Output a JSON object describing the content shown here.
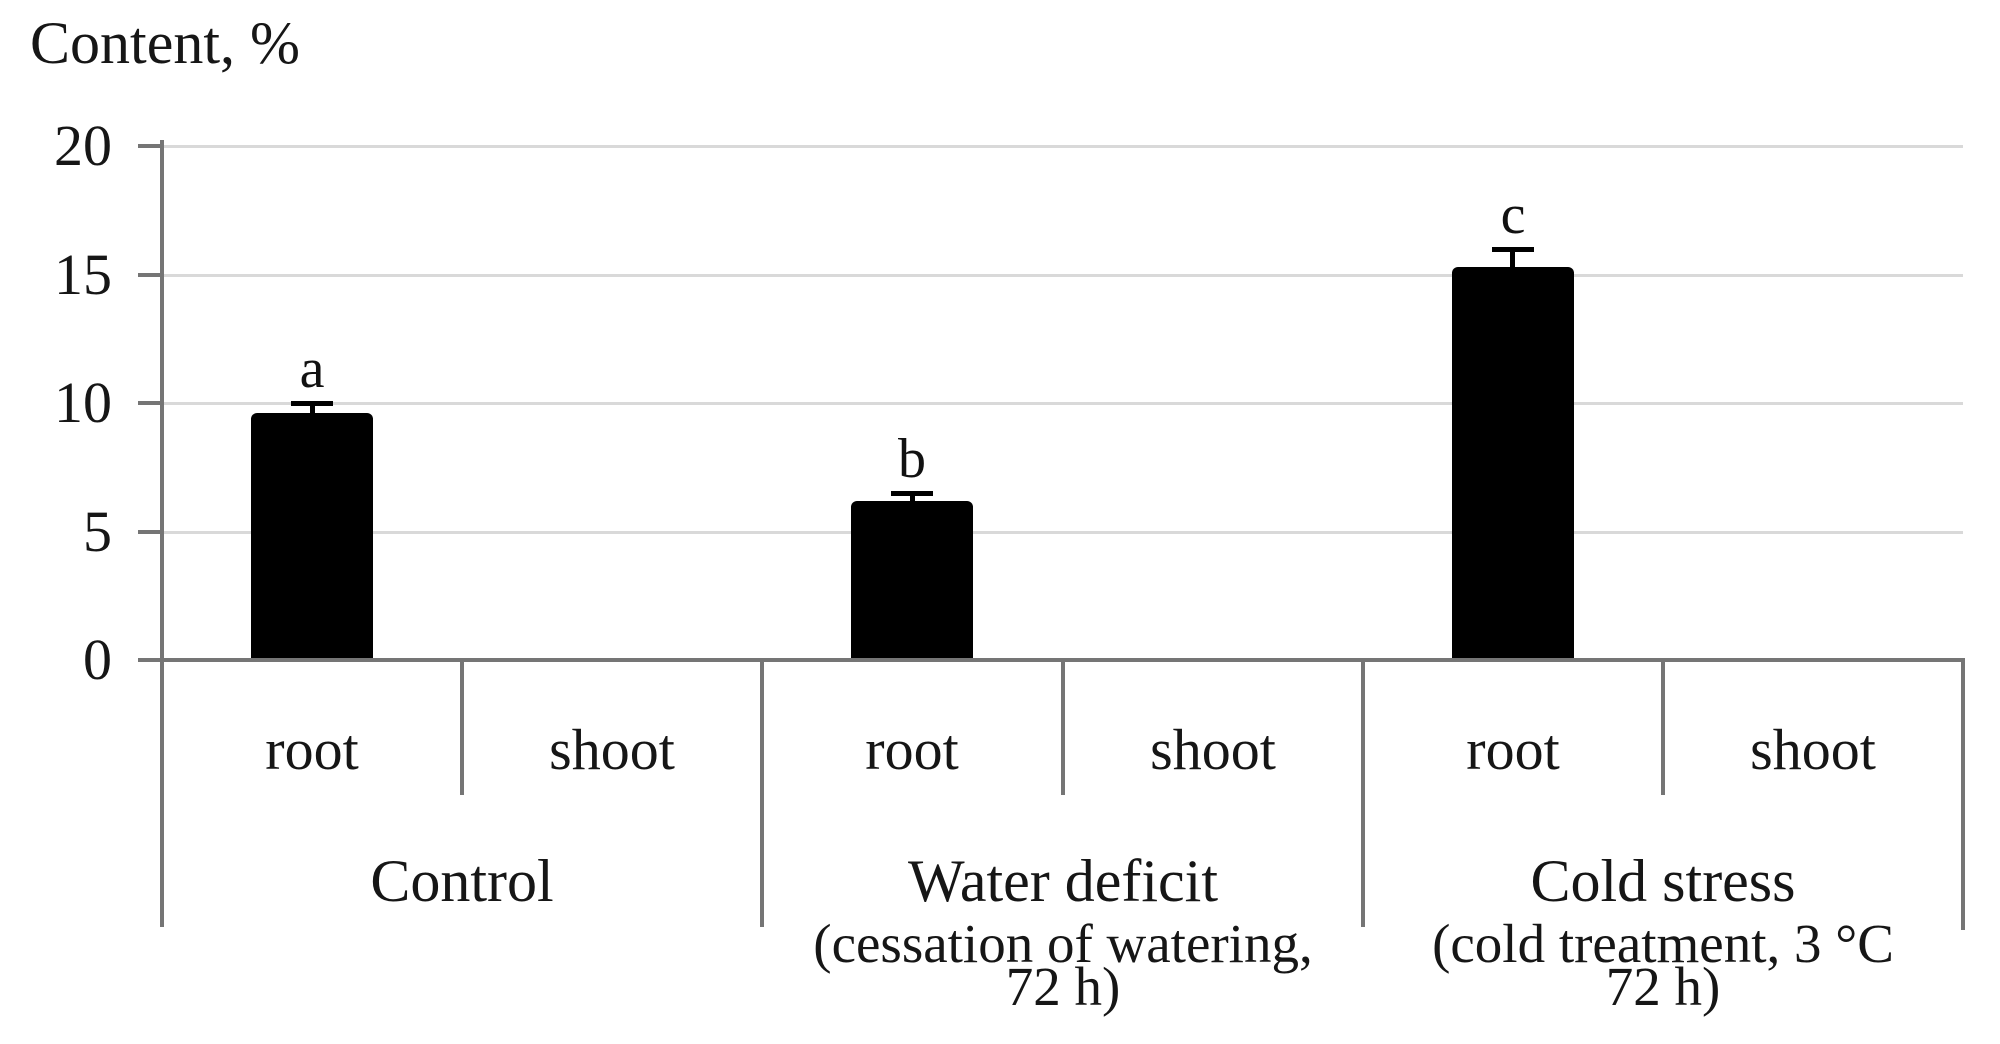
{
  "title": "Content, %",
  "colors": {
    "bar": "#000000",
    "axis": "#757575",
    "gridline": "#d9d9d9",
    "text": "#161616",
    "background": "#ffffff"
  },
  "chart_data": {
    "type": "bar",
    "title": "Content, %",
    "xlabel": "",
    "ylabel": "Content, %",
    "ylim": [
      0,
      20
    ],
    "yticks": [
      0,
      5,
      10,
      15,
      20
    ],
    "grid": true,
    "legend_position": "none",
    "categories": [
      "root",
      "shoot",
      "root",
      "shoot",
      "root",
      "shoot"
    ],
    "values": [
      9.6,
      0,
      6.2,
      0,
      15.3,
      0
    ],
    "errors": [
      0.4,
      0,
      0.3,
      0,
      0.7,
      0
    ],
    "sig_letters": [
      "a",
      "",
      "b",
      "",
      "c",
      ""
    ],
    "groups": [
      {
        "label": "Control",
        "detail_lines": []
      },
      {
        "label": "Water deficit",
        "detail_lines": [
          "(cessation of watering,",
          "72 h)"
        ]
      },
      {
        "label": "Cold stress",
        "detail_lines": [
          "(cold treatment, 3 °C",
          "72 h)"
        ]
      }
    ]
  }
}
